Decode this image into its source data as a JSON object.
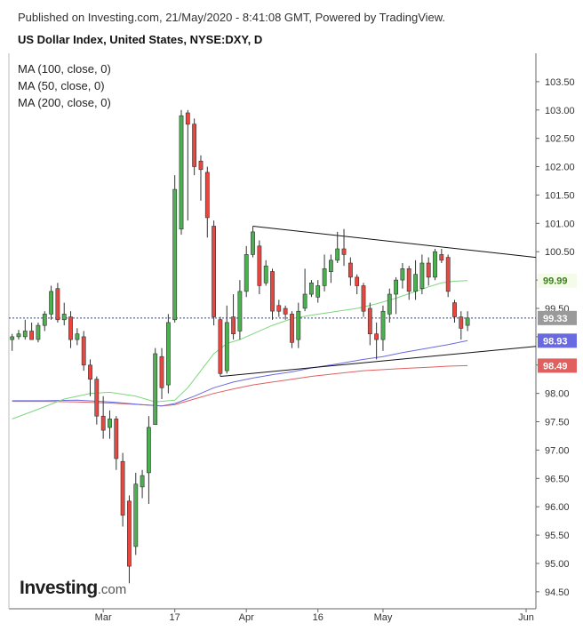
{
  "header": {
    "published": "Published on Investing.com, 21/May/2020 - 8:41:08 GMT, Powered by TradingView.",
    "title": "US Dollar Index, United States, NYSE:DXY, D"
  },
  "legend": [
    "MA (100, close, 0)",
    "MA (50, close, 0)",
    "MA (200, close, 0)"
  ],
  "logo": {
    "main": "Investing",
    "suffix": ".com"
  },
  "colors": {
    "up": "#4caf50",
    "down": "#e8463f",
    "ma50": "#7fd67f",
    "ma100": "#6a6ae0",
    "ma200": "#e06060",
    "last": "#9a9a9a",
    "grid": "#ffffff"
  },
  "chart_data": {
    "type": "candlestick",
    "y_ticks": [
      "94.50",
      "95.00",
      "95.50",
      "96.00",
      "96.50",
      "97.00",
      "97.50",
      "98.00",
      "98.50",
      "99.00",
      "99.50",
      "100.00",
      "100.50",
      "101.00",
      "101.50",
      "102.00",
      "102.50",
      "103.00",
      "103.50"
    ],
    "x_labels": [
      {
        "label": "Mar",
        "day": 14
      },
      {
        "label": "17",
        "day": 25
      },
      {
        "label": "Apr",
        "day": 36
      },
      {
        "label": "16",
        "day": 47
      },
      {
        "label": "May",
        "day": 57
      },
      {
        "label": "Jun",
        "day": 79
      }
    ],
    "ylim": [
      94.2,
      104.0
    ],
    "xlim": [
      -0.5,
      80.5
    ],
    "tags": [
      {
        "value": 99.99,
        "label": "99.99",
        "series": "ma50"
      },
      {
        "value": 99.33,
        "label": "99.33",
        "series": "last"
      },
      {
        "value": 98.93,
        "label": "98.93",
        "series": "ma100"
      },
      {
        "value": 98.49,
        "label": "98.49",
        "series": "ma200"
      }
    ],
    "candles": [
      {
        "d": 0,
        "o": 98.95,
        "h": 99.05,
        "l": 98.75,
        "c": 99.0
      },
      {
        "d": 1,
        "o": 99.0,
        "h": 99.12,
        "l": 98.95,
        "c": 99.05
      },
      {
        "d": 2,
        "o": 99.0,
        "h": 99.3,
        "l": 98.95,
        "c": 99.1
      },
      {
        "d": 3,
        "o": 99.1,
        "h": 99.25,
        "l": 98.95,
        "c": 98.95
      },
      {
        "d": 4,
        "o": 98.95,
        "h": 99.25,
        "l": 98.9,
        "c": 99.2
      },
      {
        "d": 5,
        "o": 99.2,
        "h": 99.45,
        "l": 99.1,
        "c": 99.4
      },
      {
        "d": 6,
        "o": 99.4,
        "h": 99.9,
        "l": 99.3,
        "c": 99.8
      },
      {
        "d": 7,
        "o": 99.85,
        "h": 99.95,
        "l": 99.25,
        "c": 99.3
      },
      {
        "d": 8,
        "o": 99.3,
        "h": 99.6,
        "l": 99.2,
        "c": 99.4
      },
      {
        "d": 9,
        "o": 99.35,
        "h": 99.45,
        "l": 98.8,
        "c": 98.95
      },
      {
        "d": 10,
        "o": 98.95,
        "h": 99.15,
        "l": 98.85,
        "c": 99.05
      },
      {
        "d": 11,
        "o": 99.0,
        "h": 99.1,
        "l": 98.4,
        "c": 98.5
      },
      {
        "d": 12,
        "o": 98.5,
        "h": 98.6,
        "l": 97.95,
        "c": 98.25
      },
      {
        "d": 13,
        "o": 98.25,
        "h": 98.3,
        "l": 97.45,
        "c": 97.6
      },
      {
        "d": 14,
        "o": 97.6,
        "h": 97.95,
        "l": 97.2,
        "c": 97.35
      },
      {
        "d": 15,
        "o": 97.4,
        "h": 97.7,
        "l": 97.2,
        "c": 97.55
      },
      {
        "d": 16,
        "o": 97.55,
        "h": 97.6,
        "l": 96.65,
        "c": 96.85
      },
      {
        "d": 17,
        "o": 96.8,
        "h": 96.95,
        "l": 95.65,
        "c": 95.85
      },
      {
        "d": 18,
        "o": 96.1,
        "h": 96.2,
        "l": 94.65,
        "c": 94.95
      },
      {
        "d": 19,
        "o": 95.3,
        "h": 96.6,
        "l": 95.15,
        "c": 96.4
      },
      {
        "d": 20,
        "o": 96.35,
        "h": 96.65,
        "l": 96.15,
        "c": 96.55
      },
      {
        "d": 21,
        "o": 96.6,
        "h": 97.6,
        "l": 96.05,
        "c": 97.4
      },
      {
        "d": 22,
        "o": 97.45,
        "h": 98.8,
        "l": 97.45,
        "c": 98.7
      },
      {
        "d": 23,
        "o": 98.65,
        "h": 98.8,
        "l": 97.9,
        "c": 98.1
      },
      {
        "d": 24,
        "o": 98.15,
        "h": 99.4,
        "l": 98.0,
        "c": 99.25
      },
      {
        "d": 25,
        "o": 99.3,
        "h": 101.85,
        "l": 99.25,
        "c": 101.6
      },
      {
        "d": 26,
        "o": 100.9,
        "h": 103.0,
        "l": 100.8,
        "c": 102.9
      },
      {
        "d": 27,
        "o": 102.95,
        "h": 103.0,
        "l": 101.05,
        "c": 102.75
      },
      {
        "d": 28,
        "o": 102.75,
        "h": 102.85,
        "l": 101.85,
        "c": 102.0
      },
      {
        "d": 29,
        "o": 102.1,
        "h": 102.2,
        "l": 101.4,
        "c": 101.95
      },
      {
        "d": 30,
        "o": 101.9,
        "h": 102.0,
        "l": 100.75,
        "c": 101.1
      },
      {
        "d": 31,
        "o": 100.95,
        "h": 101.05,
        "l": 99.2,
        "c": 99.35
      },
      {
        "d": 32,
        "o": 99.3,
        "h": 99.35,
        "l": 98.3,
        "c": 98.35
      },
      {
        "d": 33,
        "o": 98.4,
        "h": 99.55,
        "l": 98.35,
        "c": 99.25
      },
      {
        "d": 34,
        "o": 99.35,
        "h": 99.75,
        "l": 98.95,
        "c": 99.05
      },
      {
        "d": 35,
        "o": 99.1,
        "h": 100.0,
        "l": 98.95,
        "c": 99.8
      },
      {
        "d": 36,
        "o": 99.8,
        "h": 100.6,
        "l": 99.7,
        "c": 100.45
      },
      {
        "d": 37,
        "o": 100.45,
        "h": 100.95,
        "l": 100.4,
        "c": 100.85
      },
      {
        "d": 38,
        "o": 100.6,
        "h": 100.7,
        "l": 99.75,
        "c": 99.9
      },
      {
        "d": 39,
        "o": 99.95,
        "h": 100.35,
        "l": 99.9,
        "c": 100.25
      },
      {
        "d": 40,
        "o": 100.15,
        "h": 100.2,
        "l": 99.3,
        "c": 99.45
      },
      {
        "d": 41,
        "o": 99.55,
        "h": 99.65,
        "l": 99.35,
        "c": 99.45
      },
      {
        "d": 42,
        "o": 99.5,
        "h": 99.55,
        "l": 99.3,
        "c": 99.4
      },
      {
        "d": 43,
        "o": 99.4,
        "h": 99.45,
        "l": 98.8,
        "c": 98.9
      },
      {
        "d": 44,
        "o": 98.95,
        "h": 99.6,
        "l": 98.8,
        "c": 99.45
      },
      {
        "d": 45,
        "o": 99.5,
        "h": 100.2,
        "l": 99.45,
        "c": 99.75
      },
      {
        "d": 46,
        "o": 99.75,
        "h": 100.0,
        "l": 99.7,
        "c": 99.95
      },
      {
        "d": 47,
        "o": 99.7,
        "h": 100.0,
        "l": 99.6,
        "c": 99.9
      },
      {
        "d": 48,
        "o": 99.9,
        "h": 100.45,
        "l": 99.8,
        "c": 100.2
      },
      {
        "d": 49,
        "o": 100.15,
        "h": 100.45,
        "l": 99.95,
        "c": 100.35
      },
      {
        "d": 50,
        "o": 100.35,
        "h": 100.85,
        "l": 100.3,
        "c": 100.55
      },
      {
        "d": 51,
        "o": 100.55,
        "h": 100.9,
        "l": 100.25,
        "c": 100.45
      },
      {
        "d": 52,
        "o": 100.3,
        "h": 100.4,
        "l": 99.9,
        "c": 100.05
      },
      {
        "d": 53,
        "o": 100.05,
        "h": 100.1,
        "l": 99.75,
        "c": 99.9
      },
      {
        "d": 54,
        "o": 99.9,
        "h": 99.95,
        "l": 99.35,
        "c": 99.45
      },
      {
        "d": 55,
        "o": 99.5,
        "h": 99.6,
        "l": 98.85,
        "c": 99.05
      },
      {
        "d": 56,
        "o": 99.05,
        "h": 99.25,
        "l": 98.6,
        "c": 98.95
      },
      {
        "d": 57,
        "o": 98.95,
        "h": 99.55,
        "l": 98.75,
        "c": 99.45
      },
      {
        "d": 58,
        "o": 99.4,
        "h": 99.85,
        "l": 99.25,
        "c": 99.75
      },
      {
        "d": 59,
        "o": 99.75,
        "h": 100.05,
        "l": 99.4,
        "c": 100.0
      },
      {
        "d": 60,
        "o": 100.0,
        "h": 100.3,
        "l": 99.85,
        "c": 100.2
      },
      {
        "d": 61,
        "o": 100.2,
        "h": 100.25,
        "l": 99.65,
        "c": 99.8
      },
      {
        "d": 62,
        "o": 99.8,
        "h": 100.35,
        "l": 99.65,
        "c": 100.1
      },
      {
        "d": 63,
        "o": 99.85,
        "h": 100.45,
        "l": 99.75,
        "c": 100.3
      },
      {
        "d": 64,
        "o": 100.3,
        "h": 100.4,
        "l": 99.9,
        "c": 100.05
      },
      {
        "d": 65,
        "o": 100.05,
        "h": 100.55,
        "l": 100.0,
        "c": 100.5
      },
      {
        "d": 66,
        "o": 100.45,
        "h": 100.55,
        "l": 100.3,
        "c": 100.35
      },
      {
        "d": 67,
        "o": 100.4,
        "h": 100.45,
        "l": 99.7,
        "c": 99.8
      },
      {
        "d": 68,
        "o": 99.6,
        "h": 99.65,
        "l": 99.25,
        "c": 99.35
      },
      {
        "d": 69,
        "o": 99.35,
        "h": 99.45,
        "l": 98.95,
        "c": 99.15
      },
      {
        "d": 70,
        "o": 99.2,
        "h": 99.45,
        "l": 99.1,
        "c": 99.33
      }
    ],
    "ma50": [
      [
        0,
        97.55
      ],
      [
        4,
        97.72
      ],
      [
        8,
        97.9
      ],
      [
        12,
        98.0
      ],
      [
        15,
        98.02
      ],
      [
        19,
        97.95
      ],
      [
        22,
        97.85
      ],
      [
        25,
        97.88
      ],
      [
        27,
        98.1
      ],
      [
        29,
        98.4
      ],
      [
        31,
        98.7
      ],
      [
        33,
        98.88
      ],
      [
        35,
        98.95
      ],
      [
        37,
        99.05
      ],
      [
        40,
        99.2
      ],
      [
        43,
        99.32
      ],
      [
        46,
        99.38
      ],
      [
        50,
        99.45
      ],
      [
        53,
        99.5
      ],
      [
        56,
        99.58
      ],
      [
        59,
        99.68
      ],
      [
        62,
        99.8
      ],
      [
        64,
        99.88
      ],
      [
        66,
        99.95
      ],
      [
        68,
        99.98
      ],
      [
        70,
        99.99
      ]
    ],
    "ma100": [
      [
        0,
        97.87
      ],
      [
        5,
        97.87
      ],
      [
        10,
        97.88
      ],
      [
        15,
        97.85
      ],
      [
        20,
        97.8
      ],
      [
        23,
        97.78
      ],
      [
        25,
        97.82
      ],
      [
        28,
        97.95
      ],
      [
        31,
        98.1
      ],
      [
        34,
        98.2
      ],
      [
        37,
        98.27
      ],
      [
        40,
        98.33
      ],
      [
        43,
        98.38
      ],
      [
        46,
        98.45
      ],
      [
        50,
        98.52
      ],
      [
        54,
        98.6
      ],
      [
        57,
        98.65
      ],
      [
        60,
        98.72
      ],
      [
        64,
        98.8
      ],
      [
        67,
        98.86
      ],
      [
        70,
        98.93
      ]
    ],
    "ma200": [
      [
        0,
        97.86
      ],
      [
        5,
        97.86
      ],
      [
        10,
        97.85
      ],
      [
        15,
        97.83
      ],
      [
        20,
        97.8
      ],
      [
        23,
        97.78
      ],
      [
        25,
        97.8
      ],
      [
        28,
        97.9
      ],
      [
        31,
        98.0
      ],
      [
        34,
        98.08
      ],
      [
        37,
        98.15
      ],
      [
        40,
        98.2
      ],
      [
        43,
        98.25
      ],
      [
        46,
        98.3
      ],
      [
        50,
        98.35
      ],
      [
        54,
        98.4
      ],
      [
        57,
        98.42
      ],
      [
        60,
        98.44
      ],
      [
        64,
        98.46
      ],
      [
        67,
        98.48
      ],
      [
        70,
        98.49
      ]
    ],
    "trendlines": [
      {
        "from": [
          37,
          100.95
        ],
        "to": [
          80.5,
          100.4
        ]
      },
      {
        "from": [
          32,
          98.3
        ],
        "to": [
          80.5,
          98.83
        ]
      }
    ],
    "last_price": 99.33
  }
}
